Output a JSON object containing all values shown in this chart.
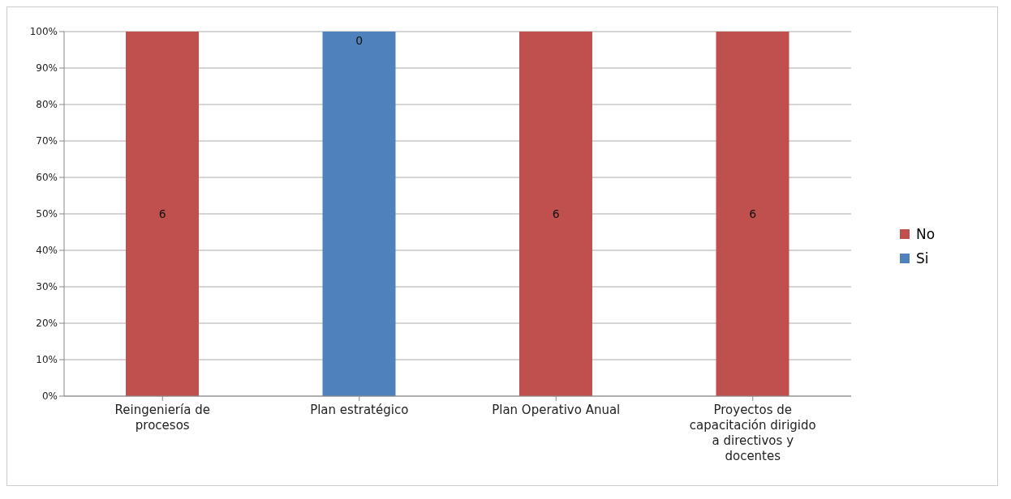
{
  "chart_data": {
    "type": "bar",
    "stacked": true,
    "categories": [
      "Reingeniería de procesos",
      "Plan estratégico",
      "Plan Operativo Anual",
      "Proyectos de capacitación dirigido a directivos y docentes"
    ],
    "series": [
      {
        "name": "Si",
        "color": "#4f81bd",
        "values": [
          0,
          100,
          0,
          0
        ]
      },
      {
        "name": "No",
        "color": "#c0504d",
        "values": [
          100,
          0,
          100,
          100
        ]
      }
    ],
    "annotations": [
      "6",
      {
        "text": "0",
        "x": "Plan estratégico",
        "y": 100
      },
      "6",
      "6"
    ],
    "ylim": [
      0,
      100
    ],
    "yticks": [
      {
        "value": 0,
        "label": "0%"
      },
      {
        "value": 10,
        "label": "10%"
      },
      {
        "value": 20,
        "label": "20%"
      },
      {
        "value": 30,
        "label": "30%"
      },
      {
        "value": 40,
        "label": "40%"
      },
      {
        "value": 50,
        "label": "50%"
      },
      {
        "value": 60,
        "label": "60%"
      },
      {
        "value": 70,
        "label": "70%"
      },
      {
        "value": 80,
        "label": "80%"
      },
      {
        "value": 90,
        "label": "90%"
      },
      {
        "value": 100,
        "label": "100%"
      }
    ],
    "grid": "y",
    "legend": "right"
  }
}
